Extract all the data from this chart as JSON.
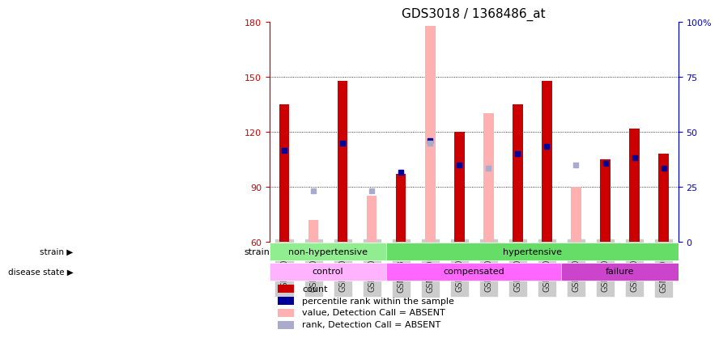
{
  "title": "GDS3018 / 1368486_at",
  "samples": [
    "GSM180079",
    "GSM180082",
    "GSM180085",
    "GSM180089",
    "GSM178755",
    "GSM180057",
    "GSM180059",
    "GSM180061",
    "GSM180062",
    "GSM180065",
    "GSM180068",
    "GSM180069",
    "GSM180073",
    "GSM180075"
  ],
  "red_values": [
    135,
    0,
    148,
    0,
    97,
    0,
    120,
    0,
    135,
    148,
    0,
    105,
    122,
    108
  ],
  "pink_values": [
    0,
    72,
    0,
    85,
    0,
    178,
    0,
    130,
    0,
    0,
    90,
    0,
    0,
    0
  ],
  "blue_values": [
    110,
    0,
    114,
    0,
    98,
    115,
    102,
    0,
    108,
    112,
    0,
    103,
    106,
    100
  ],
  "light_blue_values": [
    0,
    88,
    0,
    88,
    0,
    114,
    0,
    100,
    0,
    0,
    102,
    0,
    0,
    0
  ],
  "ylim": [
    60,
    180
  ],
  "yticks": [
    60,
    90,
    120,
    150,
    180
  ],
  "y2lim": [
    0,
    100
  ],
  "y2ticks": [
    0,
    25,
    50,
    75,
    100
  ],
  "strain_groups": [
    {
      "label": "non-hypertensive",
      "start": 0,
      "end": 4,
      "color": "#90EE90"
    },
    {
      "label": "hypertensive",
      "start": 4,
      "end": 14,
      "color": "#66DD66"
    }
  ],
  "disease_groups": [
    {
      "label": "control",
      "start": 0,
      "end": 4,
      "color": "#FFB3FF"
    },
    {
      "label": "compensated",
      "start": 4,
      "end": 10,
      "color": "#FF66FF"
    },
    {
      "label": "failure",
      "start": 10,
      "end": 14,
      "color": "#CC44CC"
    }
  ],
  "legend_items": [
    {
      "label": "count",
      "color": "#CC0000",
      "marker": "s"
    },
    {
      "label": "percentile rank within the sample",
      "color": "#000099",
      "marker": "s"
    },
    {
      "label": "value, Detection Call = ABSENT",
      "color": "#FFB3B3",
      "marker": "s"
    },
    {
      "label": "rank, Detection Call = ABSENT",
      "color": "#BBBBDD",
      "marker": "s"
    }
  ],
  "bar_width": 0.35,
  "red_color": "#CC0000",
  "pink_color": "#FFB0B0",
  "blue_color": "#000099",
  "light_blue_color": "#AAAACC",
  "tick_label_color": "#333333",
  "left_axis_color": "#CC0000",
  "right_axis_color": "#0000CC"
}
